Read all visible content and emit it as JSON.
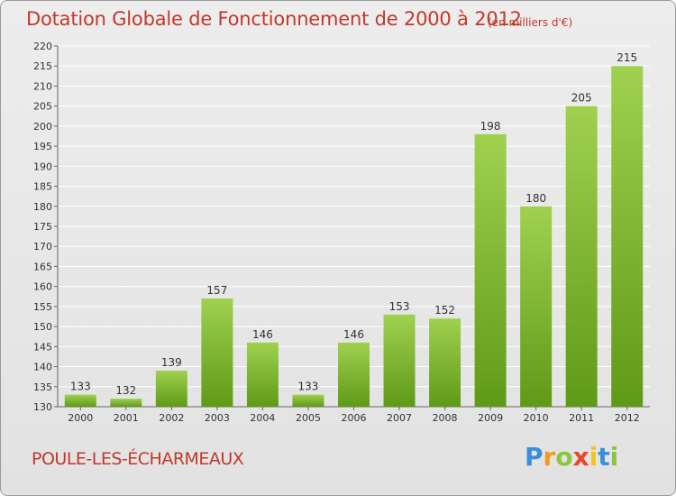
{
  "title": "Dotation Globale de Fonctionnement de 2000 à 2012",
  "subtitle": "(en milliers d'€)",
  "commune": "POULE-LES-ÉCHARMEAUX",
  "logo": {
    "letters": [
      "P",
      "r",
      "o",
      "x",
      "i",
      "t",
      "i"
    ],
    "colors": [
      "#3b8fd8",
      "#f29a1f",
      "#8cc63f",
      "#e8452c",
      "#f2c41f",
      "#3b8fd8",
      "#8cc63f"
    ]
  },
  "colors": {
    "bar_top": "#9fd14f",
    "bar_bottom": "#5f9a17",
    "text_accent": "#c0392b",
    "grid": "#ffffff"
  },
  "chart_data": {
    "type": "bar",
    "categories": [
      "2000",
      "2001",
      "2002",
      "2003",
      "2004",
      "2005",
      "2006",
      "2007",
      "2008",
      "2009",
      "2010",
      "2011",
      "2012"
    ],
    "values": [
      133,
      132,
      139,
      157,
      146,
      133,
      146,
      153,
      152,
      198,
      180,
      205,
      215
    ],
    "data_labels": [
      "133",
      "132",
      "139",
      "157",
      "146",
      "133",
      "146",
      "153",
      "152",
      "198",
      "180",
      "205",
      "215"
    ],
    "ylim": [
      130,
      220
    ],
    "yticks": [
      130,
      135,
      140,
      145,
      150,
      155,
      160,
      165,
      170,
      175,
      180,
      185,
      190,
      195,
      200,
      205,
      210,
      215,
      220
    ],
    "grid": true
  }
}
